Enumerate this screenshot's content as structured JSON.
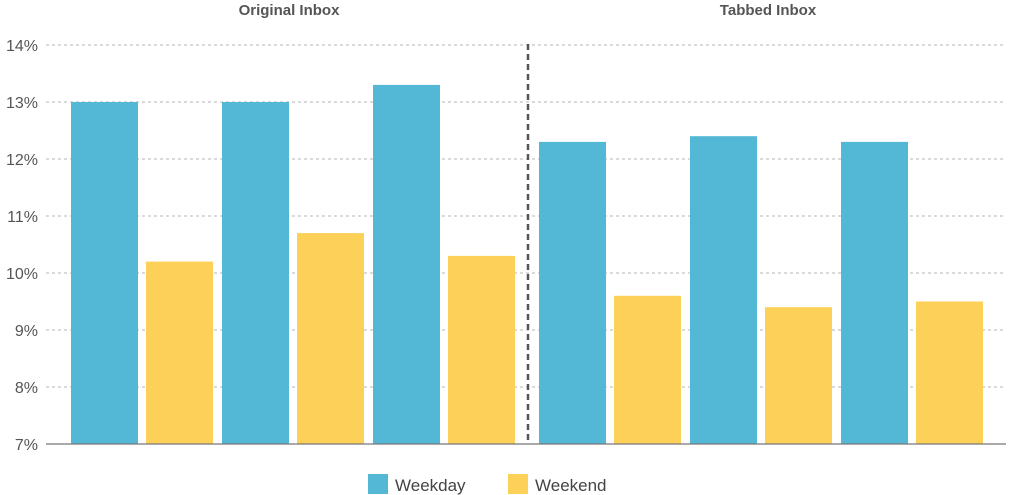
{
  "chart_data": {
    "type": "bar",
    "panels": [
      {
        "title": "Original Inbox",
        "series": [
          {
            "name": "Weekday",
            "values": [
              13.0,
              13.0,
              13.3
            ]
          },
          {
            "name": "Weekend",
            "values": [
              10.2,
              10.7,
              10.3
            ]
          }
        ]
      },
      {
        "title": "Tabbed Inbox",
        "series": [
          {
            "name": "Weekday",
            "values": [
              12.3,
              12.4,
              12.3
            ]
          },
          {
            "name": "Weekend",
            "values": [
              9.6,
              9.4,
              9.5
            ]
          }
        ]
      }
    ],
    "y_ticks": [
      "7%",
      "8%",
      "9%",
      "10%",
      "11%",
      "12%",
      "13%",
      "14%"
    ],
    "ylim": [
      7,
      14
    ],
    "ylabel": "",
    "xlabel": "",
    "grid": true,
    "legend": {
      "placement": "bottom-center",
      "items": [
        {
          "name": "Weekday",
          "color": "#52b8d5"
        },
        {
          "name": "Weekend",
          "color": "#fdd057"
        }
      ]
    },
    "colors": {
      "Weekday": "#52b8d5",
      "Weekend": "#fdd057"
    }
  }
}
